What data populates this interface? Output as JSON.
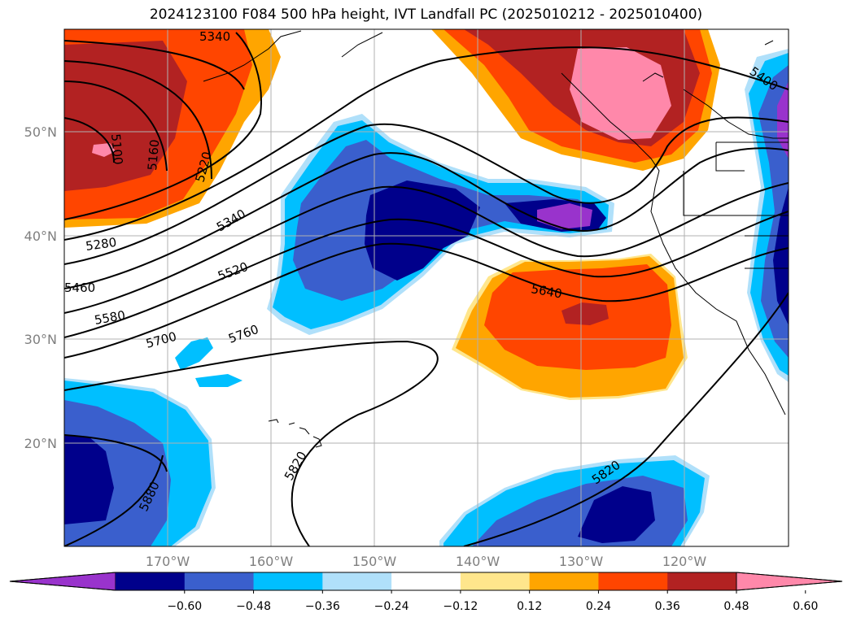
{
  "title": "2024123100 F084 500 hPa height, IVT Landfall PC (2025010212 - 2025010400)",
  "lat_labels": [
    "50°N",
    "40°N",
    "30°N",
    "20°N"
  ],
  "lon_labels": [
    "170°W",
    "160°W",
    "150°W",
    "140°W",
    "130°W",
    "120°W"
  ],
  "contour_labels": [
    "5340",
    "5100",
    "5160",
    "5220",
    "5340",
    "5280",
    "5520",
    "5460",
    "5580",
    "5700",
    "5760",
    "5640",
    "5400",
    "5820",
    "5880",
    "5820"
  ],
  "colorbar": {
    "ticks": [
      "−0.60",
      "−0.48",
      "−0.36",
      "−0.24",
      "−0.12",
      "0.12",
      "0.24",
      "0.36",
      "0.48",
      "0.60"
    ],
    "colors": [
      "#9933cc",
      "#00008b",
      "#3a5fcd",
      "#00bfff",
      "#b0e0fa",
      "#ffffff",
      "#ffe68c",
      "#ffa500",
      "#ff4500",
      "#b22222",
      "#ff88aa"
    ]
  },
  "colors": {
    "grid": "#b0b0b0",
    "contour": "#000000",
    "coast": "#000000"
  }
}
